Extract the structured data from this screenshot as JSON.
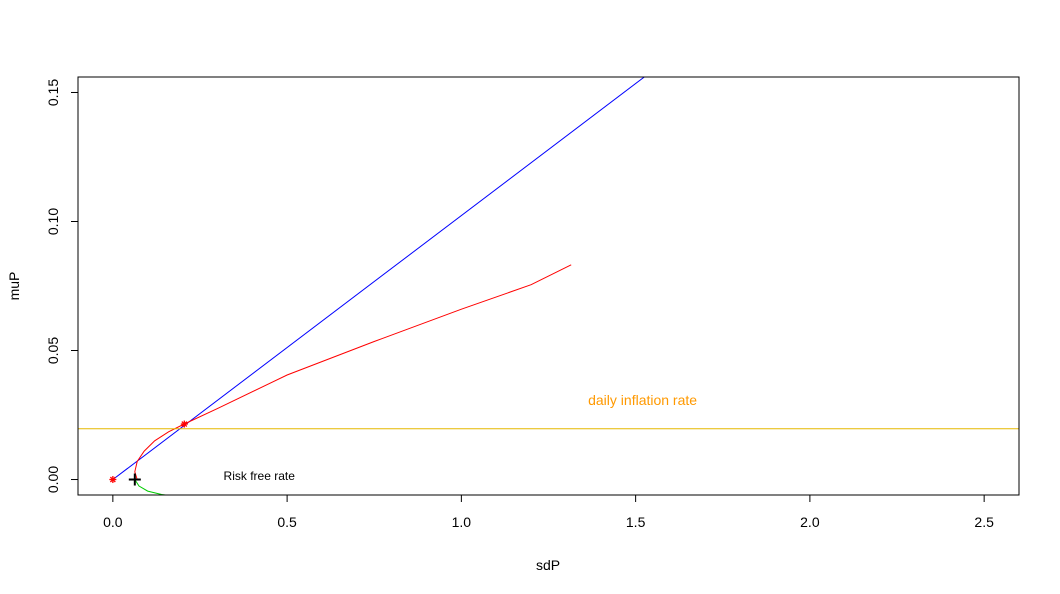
{
  "chart_data": {
    "type": "line",
    "xlabel": "sdP",
    "ylabel": "muP",
    "xlim": [
      -0.1,
      2.6
    ],
    "ylim": [
      -0.006,
      0.156
    ],
    "x_ticks": [
      0.0,
      0.5,
      1.0,
      1.5,
      2.0,
      2.5
    ],
    "x_tick_labels": [
      "0.0",
      "0.5",
      "1.0",
      "1.5",
      "2.0",
      "2.5"
    ],
    "y_ticks": [
      0.0,
      0.05,
      0.1,
      0.15
    ],
    "y_tick_labels": [
      "0.00",
      "0.05",
      "0.10",
      "0.15"
    ],
    "grid": false,
    "series": [
      {
        "color": "#0000ff",
        "x": [
          0.0,
          1.525
        ],
        "y": [
          0.0,
          0.156
        ]
      },
      {
        "color": "#ff0000",
        "x": [
          0.07,
          0.063,
          0.07,
          0.09,
          0.12,
          0.16,
          0.205,
          0.3,
          0.5,
          0.75,
          1.0,
          1.2,
          1.315
        ],
        "y": [
          0.0,
          0.003,
          0.007,
          0.011,
          0.015,
          0.0185,
          0.0215,
          0.0275,
          0.0405,
          0.0535,
          0.066,
          0.0755,
          0.0832
        ]
      },
      {
        "color": "#00cc00",
        "x": [
          0.063,
          0.075,
          0.1,
          0.14,
          0.18
        ],
        "y": [
          0.0,
          -0.0025,
          -0.0045,
          -0.0058,
          -0.0065
        ]
      },
      {
        "color": "#e6b800",
        "x": [
          -0.1,
          2.6
        ],
        "y": [
          0.0197,
          0.0197
        ]
      }
    ],
    "points": [
      {
        "x": 0.0,
        "y": 0.0,
        "marker": "star",
        "color": "#ff0000"
      },
      {
        "x": 0.205,
        "y": 0.0215,
        "marker": "star",
        "color": "#ff0000"
      },
      {
        "x": 0.063,
        "y": 0.0,
        "marker": "plus",
        "color": "#000000"
      }
    ],
    "annotations": [
      {
        "text": "daily inflation rate",
        "x": 1.52,
        "y": 0.0288,
        "color": "#ff9900"
      },
      {
        "text": "Risk free rate",
        "x": 0.42,
        "y": -0.0002,
        "color": "#000000"
      }
    ]
  }
}
